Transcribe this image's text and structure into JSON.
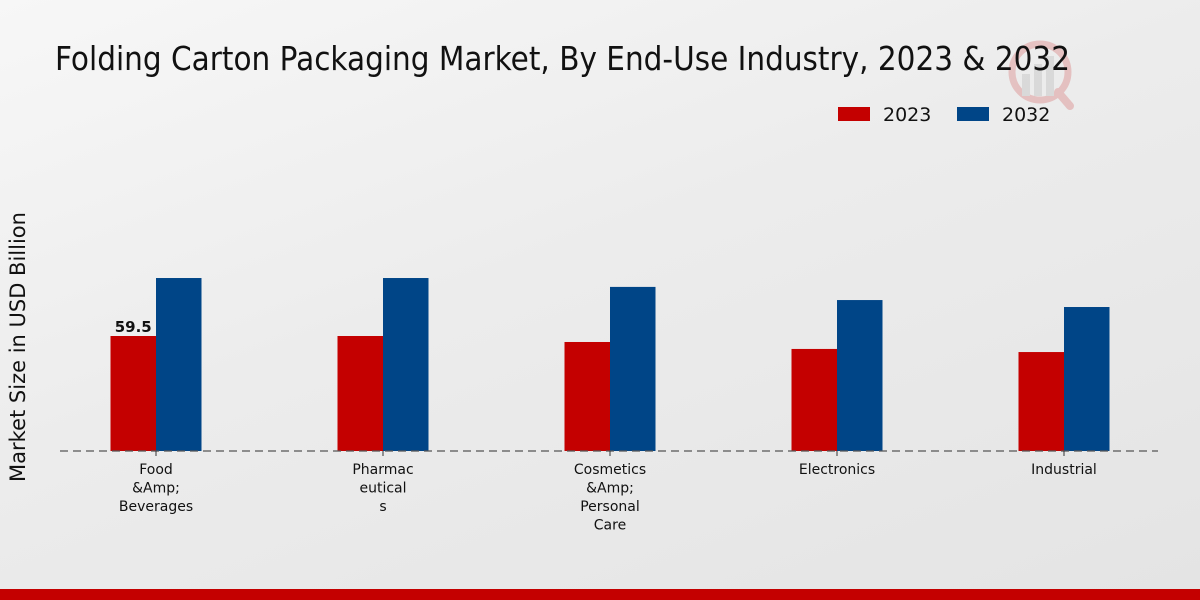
{
  "chart_data": {
    "type": "bar",
    "title": "Folding Carton Packaging Market, By End-Use Industry, 2023 & 2032",
    "xlabel": "",
    "ylabel": "Market Size in USD Billion",
    "ylim": [
      0,
      100
    ],
    "grid": false,
    "legend_position": "top-right",
    "categories": [
      [
        "Food",
        "&Amp;",
        "Beverages"
      ],
      [
        "Pharmac",
        "eutical",
        "s"
      ],
      [
        "Cosmetics",
        "&Amp;",
        "Personal",
        "Care"
      ],
      [
        "Electronics"
      ],
      [
        "Industrial"
      ]
    ],
    "category_names": [
      "Food &Amp; Beverages",
      "Pharmaceuticals",
      "Cosmetics &Amp; Personal Care",
      "Electronics",
      "Industrial"
    ],
    "series": [
      {
        "name": "2023",
        "color": "#c40000",
        "values": [
          59.5,
          59.5,
          56.4,
          52.8,
          51.2
        ]
      },
      {
        "name": "2032",
        "color": "#004587",
        "values": [
          89.5,
          89.5,
          84.9,
          78.1,
          74.5
        ]
      }
    ],
    "data_labels": [
      {
        "series": 0,
        "index": 0,
        "text": "59.5"
      }
    ]
  },
  "colors": {
    "accent_band": "#c40000",
    "baseline": "#555555"
  }
}
